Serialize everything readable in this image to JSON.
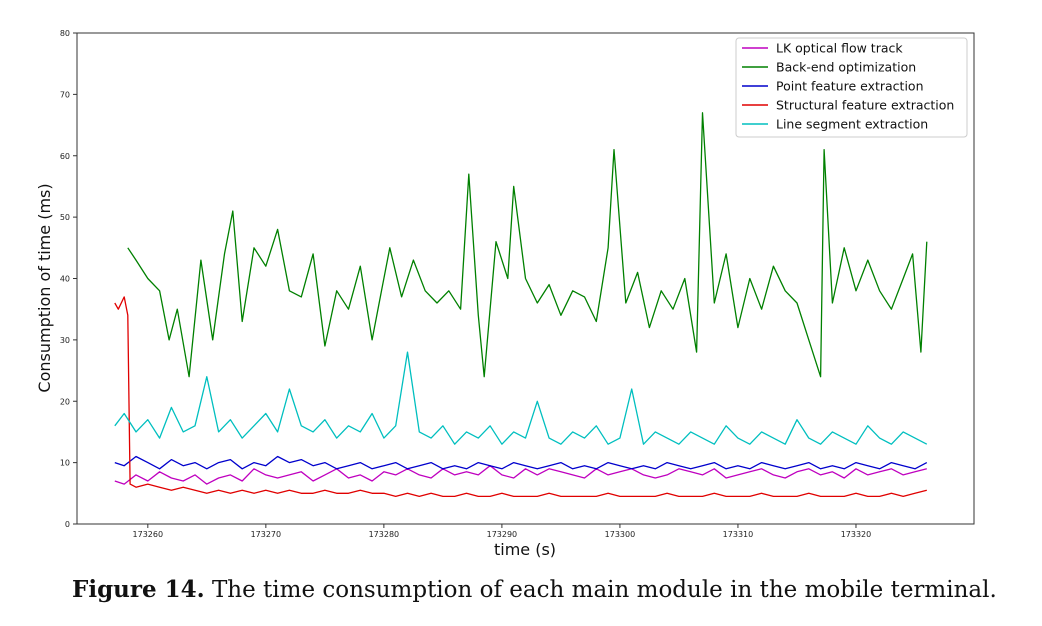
{
  "caption": {
    "label": "Figure 14.",
    "text": " The time consumption of each main module in the mobile terminal."
  },
  "chart_data": {
    "type": "line",
    "title": "",
    "xlabel": "time (s)",
    "ylabel": "Consumption of time (ms)",
    "xlim": [
      173254,
      173330
    ],
    "ylim": [
      0,
      80
    ],
    "xticks": [
      173260,
      173270,
      173280,
      173290,
      173300,
      173310,
      173320
    ],
    "yticks": [
      0,
      10,
      20,
      30,
      40,
      50,
      60,
      70,
      80
    ],
    "grid": false,
    "legend_position": "top-right",
    "series": [
      {
        "name": "LK optical flow track",
        "color": "#bf00bf",
        "x": [
          173257.2,
          173258,
          173259,
          173260,
          173261,
          173262,
          173263,
          173264,
          173265,
          173266,
          173267,
          173268,
          173269,
          173270,
          173271,
          173272,
          173273,
          173274,
          173275,
          173276,
          173277,
          173278,
          173279,
          173280,
          173281,
          173282,
          173283,
          173284,
          173285,
          173286,
          173287,
          173288,
          173289,
          173290,
          173291,
          173292,
          173293,
          173294,
          173295,
          173296,
          173297,
          173298,
          173299,
          173300,
          173301,
          173302,
          173303,
          173304,
          173305,
          173306,
          173307,
          173308,
          173309,
          173310,
          173311,
          173312,
          173313,
          173314,
          173315,
          173316,
          173317,
          173318,
          173319,
          173320,
          173321,
          173322,
          173323,
          173324,
          173325,
          173326
        ],
        "values": [
          7,
          6.5,
          8,
          7,
          8.5,
          7.5,
          7,
          8,
          6.5,
          7.5,
          8,
          7,
          9,
          8,
          7.5,
          8,
          8.5,
          7,
          8,
          9,
          7.5,
          8,
          7,
          8.5,
          8,
          9,
          8,
          7.5,
          9,
          8,
          8.5,
          8,
          9.5,
          8,
          7.5,
          9,
          8,
          9,
          8.5,
          8,
          7.5,
          9,
          8,
          8.5,
          9,
          8,
          7.5,
          8,
          9,
          8.5,
          8,
          9,
          7.5,
          8,
          8.5,
          9,
          8,
          7.5,
          8.5,
          9,
          8,
          8.5,
          7.5,
          9,
          8,
          8.5,
          9,
          8,
          8.5,
          9
        ]
      },
      {
        "name": "Back-end optimization",
        "color": "#008000",
        "x": [
          173258.3,
          173259,
          173260,
          173261,
          173261.8,
          173262.5,
          173263.5,
          173264.5,
          173265.5,
          173266.5,
          173267.2,
          173268,
          173269,
          173270,
          173271,
          173272,
          173273,
          173274,
          173275,
          173276,
          173277,
          173278,
          173279,
          173279.8,
          173280.5,
          173281.5,
          173282.5,
          173283.5,
          173284.5,
          173285.5,
          173286.5,
          173287.2,
          173288,
          173288.5,
          173289.5,
          173290.5,
          173291,
          173292,
          173293,
          173294,
          173295,
          173296,
          173297,
          173298,
          173299,
          173299.5,
          173300.5,
          173301.5,
          173302.5,
          173303.5,
          173304.5,
          173305.5,
          173306.5,
          173307,
          173308,
          173309,
          173310,
          173311,
          173312,
          173313,
          173314,
          173315,
          173316,
          173317,
          173317.3,
          173318,
          173319,
          173320,
          173321,
          173322,
          173323,
          173324,
          173324.8,
          173325.5,
          173326
        ],
        "values": [
          45,
          43,
          40,
          38,
          30,
          35,
          24,
          43,
          30,
          44,
          51,
          33,
          45,
          42,
          48,
          38,
          37,
          44,
          29,
          38,
          35,
          42,
          30,
          38,
          45,
          37,
          43,
          38,
          36,
          38,
          35,
          57,
          34,
          24,
          46,
          40,
          55,
          40,
          36,
          39,
          34,
          38,
          37,
          33,
          45,
          61,
          36,
          41,
          32,
          38,
          35,
          40,
          28,
          67,
          36,
          44,
          32,
          40,
          35,
          42,
          38,
          36,
          30,
          24,
          61,
          36,
          45,
          38,
          43,
          38,
          35,
          40,
          44,
          28,
          46
        ]
      },
      {
        "name": "Point feature extraction",
        "color": "#0000cc",
        "x": [
          173257.2,
          173258,
          173259,
          173260,
          173261,
          173262,
          173263,
          173264,
          173265,
          173266,
          173267,
          173268,
          173269,
          173270,
          173271,
          173272,
          173273,
          173274,
          173275,
          173276,
          173277,
          173278,
          173279,
          173280,
          173281,
          173282,
          173283,
          173284,
          173285,
          173286,
          173287,
          173288,
          173289,
          173290,
          173291,
          173292,
          173293,
          173294,
          173295,
          173296,
          173297,
          173298,
          173299,
          173300,
          173301,
          173302,
          173303,
          173304,
          173305,
          173306,
          173307,
          173308,
          173309,
          173310,
          173311,
          173312,
          173313,
          173314,
          173315,
          173316,
          173317,
          173318,
          173319,
          173320,
          173321,
          173322,
          173323,
          173324,
          173325,
          173326
        ],
        "values": [
          10,
          9.5,
          11,
          10,
          9,
          10.5,
          9.5,
          10,
          9,
          10,
          10.5,
          9,
          10,
          9.5,
          11,
          10,
          10.5,
          9.5,
          10,
          9,
          9.5,
          10,
          9,
          9.5,
          10,
          9,
          9.5,
          10,
          9,
          9.5,
          9,
          10,
          9.5,
          9,
          10,
          9.5,
          9,
          9.5,
          10,
          9,
          9.5,
          9,
          10,
          9.5,
          9,
          9.5,
          9,
          10,
          9.5,
          9,
          9.5,
          10,
          9,
          9.5,
          9,
          10,
          9.5,
          9,
          9.5,
          10,
          9,
          9.5,
          9,
          10,
          9.5,
          9,
          10,
          9.5,
          9,
          10
        ]
      },
      {
        "name": "Structural feature extraction",
        "color": "#e00000",
        "x": [
          173257.2,
          173257.5,
          173258,
          173258.3,
          173258.5,
          173259,
          173260,
          173261,
          173262,
          173263,
          173264,
          173265,
          173266,
          173267,
          173268,
          173269,
          173270,
          173271,
          173272,
          173273,
          173274,
          173275,
          173276,
          173277,
          173278,
          173279,
          173280,
          173281,
          173282,
          173283,
          173284,
          173285,
          173286,
          173287,
          173288,
          173289,
          173290,
          173291,
          173292,
          173293,
          173294,
          173295,
          173296,
          173297,
          173298,
          173299,
          173300,
          173301,
          173302,
          173303,
          173304,
          173305,
          173306,
          173307,
          173308,
          173309,
          173310,
          173311,
          173312,
          173313,
          173314,
          173315,
          173316,
          173317,
          173318,
          173319,
          173320,
          173321,
          173322,
          173323,
          173324,
          173325,
          173326
        ],
        "values": [
          36,
          35,
          37,
          34,
          6.5,
          6,
          6.5,
          6,
          5.5,
          6,
          5.5,
          5,
          5.5,
          5,
          5.5,
          5,
          5.5,
          5,
          5.5,
          5,
          5,
          5.5,
          5,
          5,
          5.5,
          5,
          5,
          4.5,
          5,
          4.5,
          5,
          4.5,
          4.5,
          5,
          4.5,
          4.5,
          5,
          4.5,
          4.5,
          4.5,
          5,
          4.5,
          4.5,
          4.5,
          4.5,
          5,
          4.5,
          4.5,
          4.5,
          4.5,
          5,
          4.5,
          4.5,
          4.5,
          5,
          4.5,
          4.5,
          4.5,
          5,
          4.5,
          4.5,
          4.5,
          5,
          4.5,
          4.5,
          4.5,
          5,
          4.5,
          4.5,
          5,
          4.5,
          5,
          5.5
        ]
      },
      {
        "name": "Line segment extraction",
        "color": "#00bfbf",
        "x": [
          173257.2,
          173258,
          173259,
          173260,
          173261,
          173262,
          173263,
          173264,
          173265,
          173266,
          173267,
          173268,
          173269,
          173270,
          173271,
          173272,
          173273,
          173274,
          173275,
          173276,
          173277,
          173278,
          173279,
          173280,
          173281,
          173282,
          173283,
          173284,
          173285,
          173286,
          173287,
          173288,
          173289,
          173290,
          173291,
          173292,
          173293,
          173294,
          173295,
          173296,
          173297,
          173298,
          173299,
          173300,
          173301,
          173302,
          173303,
          173304,
          173305,
          173306,
          173307,
          173308,
          173309,
          173310,
          173311,
          173312,
          173313,
          173314,
          173315,
          173316,
          173317,
          173318,
          173319,
          173320,
          173321,
          173322,
          173323,
          173324,
          173325,
          173326
        ],
        "values": [
          16,
          18,
          15,
          17,
          14,
          19,
          15,
          16,
          24,
          15,
          17,
          14,
          16,
          18,
          15,
          22,
          16,
          15,
          17,
          14,
          16,
          15,
          18,
          14,
          16,
          28,
          15,
          14,
          16,
          13,
          15,
          14,
          16,
          13,
          15,
          14,
          20,
          14,
          13,
          15,
          14,
          16,
          13,
          14,
          22,
          13,
          15,
          14,
          13,
          15,
          14,
          13,
          16,
          14,
          13,
          15,
          14,
          13,
          17,
          14,
          13,
          15,
          14,
          13,
          16,
          14,
          13,
          15,
          14,
          13
        ]
      }
    ]
  }
}
